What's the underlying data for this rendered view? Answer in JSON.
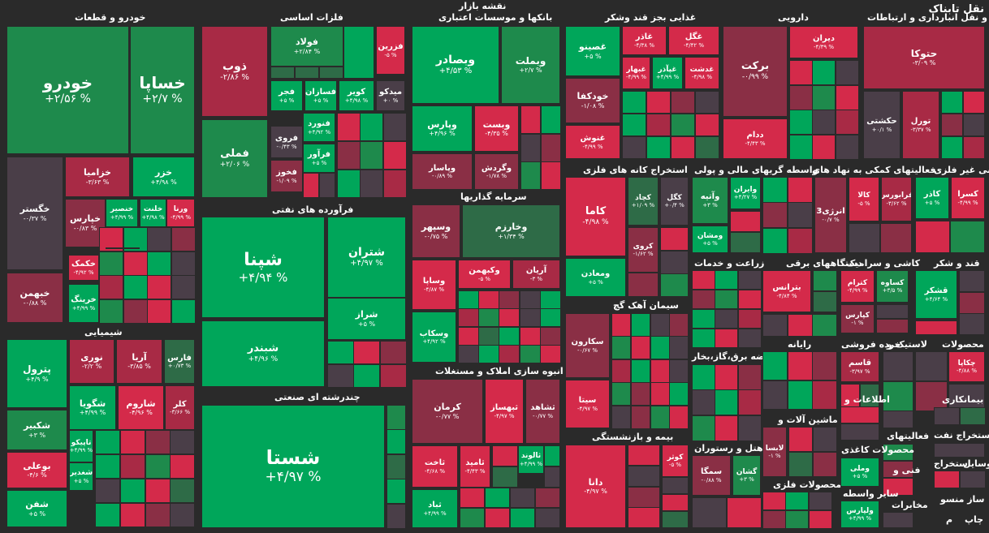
{
  "title": "نقشه بازار",
  "logo": "نقل تابناک",
  "colors": {
    "strong_green": "#00a65a",
    "green": "#1e8a4c",
    "light_green": "#2e6b47",
    "neutral": "#4a3e48",
    "light_red": "#8a2f45",
    "red": "#a82a45",
    "strong_red": "#d42a4a"
  },
  "chart_data": {
    "type": "heatmap",
    "sectors": [
      {
        "name": "خودرو و قطعات",
        "symbols": [
          {
            "name": "خودرو",
            "change": "+۲/۵۶ %"
          },
          {
            "name": "خساپا",
            "change": "+۲/۷ %"
          },
          {
            "name": "خگستر",
            "change": "-۰/۳۷ %"
          },
          {
            "name": "خزامیا",
            "change": "-۳/۶۳ %"
          },
          {
            "name": "خزر",
            "change": "+۴/۹۸ %"
          },
          {
            "name": "خپارس",
            "change": "-۰/۸۳ %"
          },
          {
            "name": "خنصیر",
            "change": "+۴/۹۹ %"
          },
          {
            "name": "خلنت",
            "change": "+۴/۹۸ %"
          },
          {
            "name": "ورنا",
            "change": "-۴/۹۹ %"
          },
          {
            "name": "خکمک",
            "change": "-۴/۹۲ %"
          },
          {
            "name": "خبهمن",
            "change": "-۰/۸۸ %"
          },
          {
            "name": "خرینگ",
            "change": "+۴/۹۹ %"
          }
        ]
      },
      {
        "name": "شیمیایی",
        "symbols": [
          {
            "name": "پترول",
            "change": "+۴/۹ %"
          },
          {
            "name": "نوری",
            "change": "-۲/۲ %"
          },
          {
            "name": "آریا",
            "change": "-۳/۸۵ %"
          },
          {
            "name": "فارس",
            "change": "+۰/۷۳ %"
          },
          {
            "name": "شگویا",
            "change": "+۴/۹۹ %"
          },
          {
            "name": "شاروم",
            "change": "-۴/۹۶ %"
          },
          {
            "name": "کلر",
            "change": "-۳/۶۶ %"
          },
          {
            "name": "شکبیر",
            "change": "+۳ %"
          },
          {
            "name": "تاپیکو",
            "change": "+۴/۹۹ %"
          },
          {
            "name": "بوعلی",
            "change": "-۴/۶ %"
          },
          {
            "name": "شغدیر",
            "change": "+۵ %"
          },
          {
            "name": "شفن",
            "change": "+۵ %"
          }
        ]
      },
      {
        "name": "فلزات اساسی",
        "symbols": [
          {
            "name": "ذوب",
            "change": "-۲/۸۶ %"
          },
          {
            "name": "فولاد",
            "change": "+۲/۸۴ %"
          },
          {
            "name": "فزرین",
            "change": "-۵ %"
          },
          {
            "name": "فجر",
            "change": "+۵ %"
          },
          {
            "name": "فسازان",
            "change": "+۵ %"
          },
          {
            "name": "کویر",
            "change": "+۴/۹۸ %"
          },
          {
            "name": "میدکو",
            "change": "+۰ %"
          },
          {
            "name": "فملی",
            "change": "+۲/۰۶ %"
          },
          {
            "name": "فنورد",
            "change": "+۴/۹۲ %"
          },
          {
            "name": "فروی",
            "change": "-۰/۴۳ %"
          },
          {
            "name": "فرآور",
            "change": "+۵ %"
          },
          {
            "name": "فخوز",
            "change": "-۱/۰۹ %"
          }
        ]
      },
      {
        "name": "فرآورده های نفتی",
        "symbols": [
          {
            "name": "شپنا",
            "change": "+۴/۹۴ %"
          },
          {
            "name": "شتران",
            "change": "+۴/۹۷ %"
          },
          {
            "name": "شراز",
            "change": "+۵ %"
          },
          {
            "name": "شبندر",
            "change": "+۴/۹۶ %"
          }
        ]
      },
      {
        "name": "چندرشته ای صنعتی",
        "symbols": [
          {
            "name": "شستا",
            "change": "+۴/۹۷ %"
          }
        ]
      },
      {
        "name": "بانکها و موسسات اعتباری",
        "symbols": [
          {
            "name": "وبصادر",
            "change": "+۴/۵۳ %"
          },
          {
            "name": "وبملت",
            "change": "+۲/۷ %"
          },
          {
            "name": "وپارس",
            "change": "+۴/۹۶ %"
          },
          {
            "name": "وبست",
            "change": "-۴/۳۵ %"
          },
          {
            "name": "وپاسار",
            "change": "-۰/۸۹ %"
          },
          {
            "name": "وگردش",
            "change": "-۱/۷۸ %"
          }
        ]
      },
      {
        "name": "سرمایه گذاریها",
        "symbols": [
          {
            "name": "وسپهر",
            "change": "-۰/۷۵ %"
          },
          {
            "name": "وخارزم",
            "change": "+۱/۳۴ %"
          },
          {
            "name": "وساپا",
            "change": "-۴/۸۷ %"
          },
          {
            "name": "وکبهمن",
            "change": "-۵ %"
          },
          {
            "name": "آریان",
            "change": "-۳ %"
          },
          {
            "name": "وسکاب",
            "change": "+۴/۹۲ %"
          }
        ]
      },
      {
        "name": "انبوه سازی املاک و مستغلات",
        "symbols": [
          {
            "name": "کرمان",
            "change": "-۰/۷۷ %"
          },
          {
            "name": "ثبهساز",
            "change": "-۴/۹۷ %"
          },
          {
            "name": "ثشاهد",
            "change": "-۰/۷۷ %"
          },
          {
            "name": "ثاخت",
            "change": "-۴/۶۸ %"
          },
          {
            "name": "ثامید",
            "change": "-۴/۴۳ %"
          },
          {
            "name": "ثالوند",
            "change": "+۴/۹۹ %"
          },
          {
            "name": "ثباد",
            "change": "+۴/۹۹ %"
          }
        ]
      },
      {
        "name": "غذایی بجز قند وشکر",
        "symbols": [
          {
            "name": "غصینو",
            "change": "+۵ %"
          },
          {
            "name": "غاذر",
            "change": "-۴/۳۸ %"
          },
          {
            "name": "غگل",
            "change": "-۴/۴۲ %"
          },
          {
            "name": "غبهار",
            "change": "-۴/۹۹ %"
          },
          {
            "name": "غپآذر",
            "change": "+۴/۹۹ %"
          },
          {
            "name": "غدشت",
            "change": "-۴/۹۸ %"
          },
          {
            "name": "خودکفا",
            "change": "-۱/۰۸ %"
          },
          {
            "name": "غنوش",
            "change": "-۴/۹۹ %"
          }
        ]
      },
      {
        "name": "دارویی",
        "symbols": [
          {
            "name": "برکت",
            "change": "-۰/۹۹ %"
          },
          {
            "name": "دیران",
            "change": "-۴/۳۹ %"
          },
          {
            "name": "ددام",
            "change": "-۴/۴۳ %"
          }
        ]
      },
      {
        "name": "حمل و نقل انبارداری و ارتباطات",
        "symbols": [
          {
            "name": "حتوکا",
            "change": "-۳/۰۹ %"
          },
          {
            "name": "حکشتی",
            "change": "+۰/۱ %"
          },
          {
            "name": "تورل",
            "change": "-۳/۳۷ %"
          }
        ]
      },
      {
        "name": "استخراج کانه های فلزی",
        "symbols": [
          {
            "name": "کاما",
            "change": "-۴/۹۸ %"
          },
          {
            "name": "کچاد",
            "change": "+۱/۰۹ %"
          },
          {
            "name": "کگل",
            "change": "+۰/۴ %"
          },
          {
            "name": "کروی",
            "change": "-۱/۶۲ %"
          },
          {
            "name": "ومعادن",
            "change": "+۵ %"
          }
        ]
      },
      {
        "name": "سیمان آهک گچ",
        "symbols": [
          {
            "name": "سکارون",
            "change": "-۰/۶۷ %"
          },
          {
            "name": "سیتا",
            "change": "-۴/۹۷ %"
          }
        ]
      },
      {
        "name": "بیمه و بازنشستگی",
        "symbols": [
          {
            "name": "دانا",
            "change": "-۴/۹۷ %"
          },
          {
            "name": "کوثر",
            "change": "-۵ %"
          }
        ]
      },
      {
        "name": "واسطه گریهای مالی و پولی",
        "symbols": [
          {
            "name": "وآتیه",
            "change": "+۳ %"
          },
          {
            "name": "وایران",
            "change": "+۴/۲۷ %"
          },
          {
            "name": "ومشان",
            "change": "+۵ %"
          }
        ]
      },
      {
        "name": "فعالیتهای کمکی به نهاد های",
        "symbols": [
          {
            "name": "انرژی3",
            "change": "-۰/۷ %"
          },
          {
            "name": "کالا",
            "change": "-۵ %"
          },
          {
            "name": "فرابورس",
            "change": "-۳/۶۲ %"
          }
        ]
      },
      {
        "name": "کانی غیر فلزی",
        "symbols": [
          {
            "name": "کاذر",
            "change": "+۵ %"
          },
          {
            "name": "کسرا",
            "change": "-۴/۹۹ %"
          }
        ]
      },
      {
        "name": "زراعت و خدمات",
        "symbols": []
      },
      {
        "name": "عرضه برق،گاز،بخار",
        "symbols": []
      },
      {
        "name": "هتل و رستوران",
        "symbols": [
          {
            "name": "سمگا",
            "change": "-۰/۸۸ %"
          },
          {
            "name": "گشان",
            "change": "+۳ %"
          }
        ]
      },
      {
        "name": "محصولات فلزی",
        "symbols": []
      },
      {
        "name": "دستگاههای برقی",
        "symbols": [
          {
            "name": "بترانس",
            "change": "-۴/۸۴ %"
          }
        ]
      },
      {
        "name": "رایانه",
        "symbols": []
      },
      {
        "name": "ماشین آلات و",
        "symbols": [
          {
            "name": "لابسا",
            "change": "-۱ %"
          }
        ]
      },
      {
        "name": "کاشی و سرامیک",
        "symbols": [
          {
            "name": "کترام",
            "change": "-۴/۹۹ %"
          },
          {
            "name": "کساوه",
            "change": "+۳/۵ %"
          },
          {
            "name": "کپارس",
            "change": "-۱ %"
          }
        ]
      },
      {
        "name": "قند و شکر",
        "symbols": [
          {
            "name": "قشکر",
            "change": "+۴/۶۴ %"
          }
        ]
      },
      {
        "name": "خرده فروشی",
        "symbols": [
          {
            "name": "قاسم",
            "change": "-۳/۹۷ %"
          }
        ]
      },
      {
        "name": "لاستیک و",
        "symbols": []
      },
      {
        "name": "محصولات",
        "symbols": [
          {
            "name": "چکاپا",
            "change": "-۴/۸۸ %"
          }
        ]
      },
      {
        "name": "اطلاعات و",
        "symbols": []
      },
      {
        "name": "بیمانکاری",
        "symbols": []
      },
      {
        "name": "فعالیتهای",
        "symbols": []
      },
      {
        "name": "استخراج نفت",
        "symbols": []
      },
      {
        "name": "فنی و",
        "symbols": []
      },
      {
        "name": "وسایل",
        "symbols": []
      },
      {
        "name": "استخراج",
        "symbols": []
      },
      {
        "name": "محصولات کاغذی",
        "symbols": [
          {
            "name": "وملی",
            "change": "+۵ %"
          }
        ]
      },
      {
        "name": "سایر واسطه",
        "symbols": [
          {
            "name": "ولپارس",
            "change": "+۴/۹۹ %"
          }
        ]
      },
      {
        "name": "مخابرات",
        "symbols": []
      },
      {
        "name": "ساز منسو",
        "symbols": []
      },
      {
        "name": "چاپ",
        "symbols": []
      },
      {
        "name": "م",
        "symbols": []
      }
    ]
  }
}
